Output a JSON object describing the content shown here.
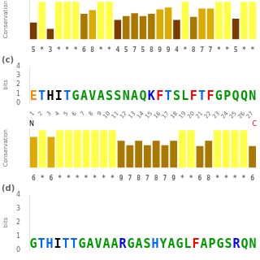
{
  "chart_data": [
    {
      "type": "bar",
      "y_label": "Conservation",
      "categories": [
        "5",
        "*",
        "3",
        "*",
        "*",
        "*",
        "6",
        "8",
        "*",
        "*",
        "4",
        "5",
        "7",
        "5",
        "8",
        "9",
        "9",
        "4",
        "*",
        "8",
        "7",
        "7",
        "*",
        "*",
        "5",
        "*",
        "*"
      ],
      "values": [
        0.45,
        1.0,
        0.28,
        1.0,
        1.0,
        1.0,
        0.68,
        0.78,
        1.0,
        1.0,
        0.52,
        0.62,
        0.7,
        0.62,
        0.68,
        0.8,
        0.85,
        0.52,
        1.0,
        0.6,
        0.82,
        0.82,
        1.0,
        1.0,
        0.55,
        1.0,
        1.0
      ],
      "colors": [
        "#7B3B00",
        "#FFFF44",
        "#7B3B00",
        "#FFFF44",
        "#FFFF44",
        "#FFFF44",
        "#AA7700",
        "#DDAA00",
        "#FFFF44",
        "#FFFF44",
        "#7B3B00",
        "#AA7700",
        "#AA7700",
        "#AA7700",
        "#AA7700",
        "#DDAA00",
        "#DDAA00",
        "#7B3B00",
        "#FFFF44",
        "#AA7700",
        "#DDAA00",
        "#DDAA00",
        "#FFFF44",
        "#FFFF44",
        "#7B3B00",
        "#FFFF44",
        "#FFFF44"
      ],
      "ylim": [
        0,
        1.05
      ],
      "tick_labels": "x",
      "grid": false
    },
    {
      "type": "logo",
      "title": "(c)",
      "y_label": "bits",
      "categories": [
        "1",
        "2",
        "3",
        "4",
        "5",
        "6",
        "7",
        "8",
        "9",
        "10",
        "11",
        "12",
        "13",
        "14",
        "15",
        "16",
        "17",
        "18",
        "19",
        "20",
        "21",
        "22",
        "23",
        "24",
        "25",
        "26",
        "27"
      ],
      "letters": [
        "E",
        "T",
        "H",
        "I",
        "T",
        "G",
        "A",
        "V",
        "A",
        "S",
        "S",
        "N",
        "A",
        "Q",
        "K",
        "F",
        "T",
        "S",
        "L",
        "F",
        "T",
        "F",
        "G",
        "P",
        "Q",
        "Q",
        "N"
      ],
      "colors": [
        "#FF8800",
        "#0066FF",
        "#000000",
        "#000000",
        "#0066FF",
        "#009900",
        "#009900",
        "#009900",
        "#009900",
        "#009900",
        "#009900",
        "#009900",
        "#009900",
        "#009900",
        "#0000FF",
        "#FF0000",
        "#0066FF",
        "#009900",
        "#009900",
        "#FF0000",
        "#0066FF",
        "#FF0000",
        "#009900",
        "#009900",
        "#009900",
        "#009900",
        "#009900"
      ],
      "ylim": [
        0,
        4
      ],
      "yticks": [
        0,
        1,
        2,
        3,
        4
      ],
      "annotations": [
        {
          "text": "N",
          "color": "#000000"
        },
        {
          "text": "C",
          "color": "#FF0000"
        }
      ],
      "grid": false
    },
    {
      "type": "bar",
      "y_label": "Conservation",
      "categories": [
        "6",
        "*",
        "6",
        "*",
        "*",
        "*",
        "*",
        "*",
        "*",
        "*",
        "9",
        "7",
        "8",
        "7",
        "8",
        "7",
        "9",
        "*",
        "*",
        "6",
        "8",
        "*",
        "*",
        "*",
        "*",
        "6"
      ],
      "values": [
        0.82,
        1.0,
        0.82,
        1.0,
        1.0,
        1.0,
        1.0,
        1.0,
        1.0,
        1.0,
        0.72,
        0.6,
        0.72,
        0.6,
        0.72,
        0.6,
        0.72,
        1.0,
        1.0,
        0.58,
        0.72,
        1.0,
        1.0,
        1.0,
        1.0,
        0.58
      ],
      "colors": [
        "#DDAA00",
        "#FFFF44",
        "#DDAA00",
        "#FFFF44",
        "#FFFF44",
        "#FFFF44",
        "#FFFF44",
        "#FFFF44",
        "#FFFF44",
        "#FFFF44",
        "#AA7700",
        "#AA7700",
        "#AA7700",
        "#AA7700",
        "#AA7700",
        "#AA7700",
        "#AA7700",
        "#FFFF44",
        "#FFFF44",
        "#AA7700",
        "#AA7700",
        "#FFFF44",
        "#FFFF44",
        "#FFFF44",
        "#FFFF44",
        "#AA7700"
      ],
      "ylim": [
        0,
        1.05
      ],
      "tick_labels": "x",
      "grid": false
    },
    {
      "type": "logo",
      "title": "(d)",
      "y_label": "bits",
      "letters": [
        "G",
        "T",
        "H",
        "I",
        "T",
        "T",
        "G",
        "A",
        "V",
        "A",
        "A",
        "R",
        "G",
        "A",
        "S",
        "H",
        "Y",
        "A",
        "G",
        "L",
        "F",
        "A",
        "P",
        "G",
        "S",
        "R",
        "Q",
        "N"
      ],
      "colors": [
        "#009900",
        "#0066FF",
        "#0066FF",
        "#000000",
        "#0066FF",
        "#0066FF",
        "#009900",
        "#009900",
        "#009900",
        "#009900",
        "#009900",
        "#0000FF",
        "#009900",
        "#009900",
        "#009900",
        "#0066FF",
        "#009900",
        "#009900",
        "#009900",
        "#009900",
        "#FF0000",
        "#009900",
        "#009900",
        "#009900",
        "#009900",
        "#0000FF",
        "#009900",
        "#009900"
      ],
      "ylim": [
        0,
        4
      ],
      "yticks": [
        0,
        1,
        2,
        3,
        4
      ],
      "tick_labels": "y",
      "grid": false
    }
  ]
}
